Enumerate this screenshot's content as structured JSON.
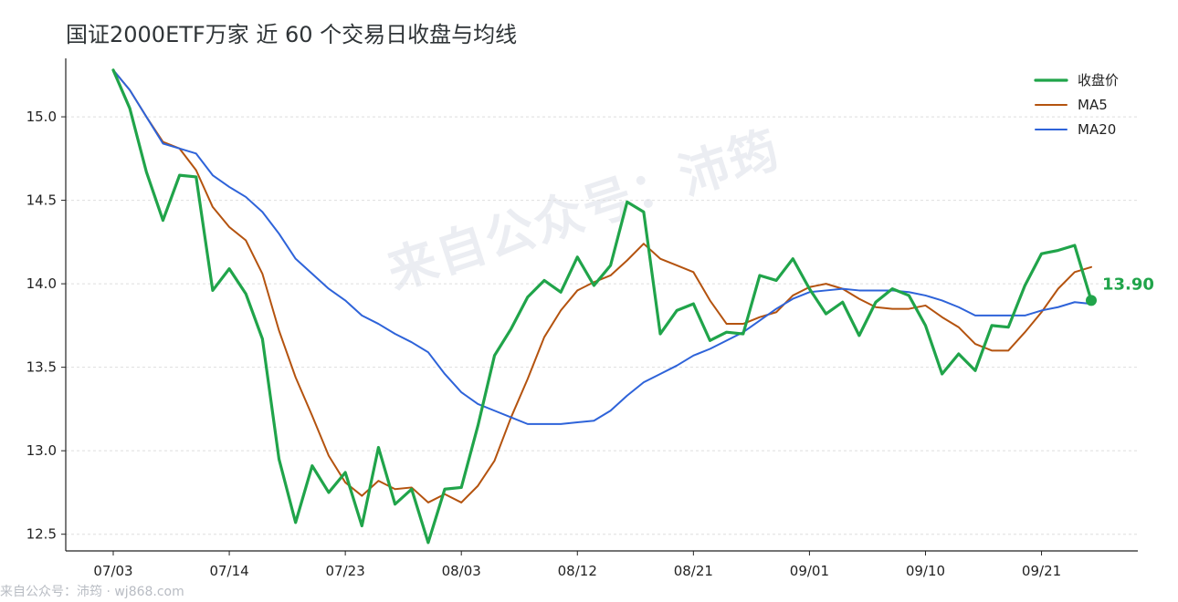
{
  "chart_data": {
    "type": "line",
    "title": "国证2000ETF万家 近 60 个交易日收盘与均线",
    "xlabel": "",
    "ylabel": "",
    "x_tick_labels": [
      "07/03",
      "07/14",
      "07/23",
      "08/03",
      "08/12",
      "08/21",
      "09/01",
      "09/10",
      "09/21"
    ],
    "x_tick_indices": [
      0,
      7,
      14,
      21,
      28,
      35,
      42,
      49,
      56
    ],
    "ylim": [
      12.4,
      15.35
    ],
    "y_ticks": [
      12.5,
      13.0,
      13.5,
      14.0,
      14.5,
      15.0
    ],
    "y_tick_labels": [
      "12.5",
      "13.0",
      "13.5",
      "14.0",
      "14.5",
      "15.0"
    ],
    "grid": "horizontal dashed",
    "legend_position": "top-right",
    "series": [
      {
        "name": "收盘价",
        "color": "#20a44a",
        "values": [
          15.28,
          15.05,
          14.67,
          14.38,
          14.65,
          14.64,
          13.96,
          14.09,
          13.94,
          13.67,
          12.95,
          12.57,
          12.91,
          12.75,
          12.87,
          12.55,
          13.02,
          12.68,
          12.77,
          12.45,
          12.77,
          12.78,
          13.15,
          13.57,
          13.73,
          13.92,
          14.02,
          13.95,
          14.16,
          13.99,
          14.11,
          14.49,
          14.43,
          13.7,
          13.84,
          13.88,
          13.66,
          13.71,
          13.7,
          14.05,
          14.02,
          14.15,
          13.97,
          13.82,
          13.89,
          13.69,
          13.89,
          13.97,
          13.93,
          13.75,
          13.46,
          13.58,
          13.48,
          13.75,
          13.74,
          13.99,
          14.18,
          14.2,
          14.23,
          13.9
        ]
      },
      {
        "name": "MA5",
        "color": "#b4530f",
        "values": [
          15.28,
          15.16,
          15.0,
          14.85,
          14.81,
          14.68,
          14.46,
          14.34,
          14.26,
          14.06,
          13.72,
          13.44,
          13.21,
          12.97,
          12.81,
          12.73,
          12.82,
          12.77,
          12.78,
          12.69,
          12.74,
          12.69,
          12.79,
          12.94,
          13.2,
          13.43,
          13.68,
          13.84,
          13.96,
          14.01,
          14.05,
          14.14,
          14.24,
          14.15,
          14.11,
          14.07,
          13.9,
          13.76,
          13.76,
          13.8,
          13.83,
          13.93,
          13.98,
          14.0,
          13.97,
          13.91,
          13.86,
          13.85,
          13.85,
          13.87,
          13.8,
          13.74,
          13.64,
          13.6,
          13.6,
          13.71,
          13.83,
          13.97,
          14.07,
          14.1
        ]
      },
      {
        "name": "MA20",
        "color": "#2e63d9",
        "values": [
          15.28,
          15.16,
          15.0,
          14.84,
          14.81,
          14.78,
          14.65,
          14.58,
          14.52,
          14.43,
          14.3,
          14.15,
          14.06,
          13.97,
          13.9,
          13.81,
          13.76,
          13.7,
          13.65,
          13.59,
          13.46,
          13.35,
          13.28,
          13.24,
          13.2,
          13.16,
          13.16,
          13.16,
          13.17,
          13.18,
          13.24,
          13.33,
          13.41,
          13.46,
          13.51,
          13.57,
          13.61,
          13.66,
          13.71,
          13.78,
          13.85,
          13.91,
          13.95,
          13.96,
          13.97,
          13.96,
          13.96,
          13.96,
          13.95,
          13.93,
          13.9,
          13.86,
          13.81,
          13.81,
          13.81,
          13.81,
          13.84,
          13.86,
          13.89,
          13.88
        ]
      }
    ],
    "annotations": [
      {
        "text": "13.90",
        "series": "收盘价",
        "index": 59
      }
    ],
    "watermark": "来自公众号：沛筠"
  },
  "footer": {
    "source": "来自公众号：沛筠 · wj868.com"
  }
}
